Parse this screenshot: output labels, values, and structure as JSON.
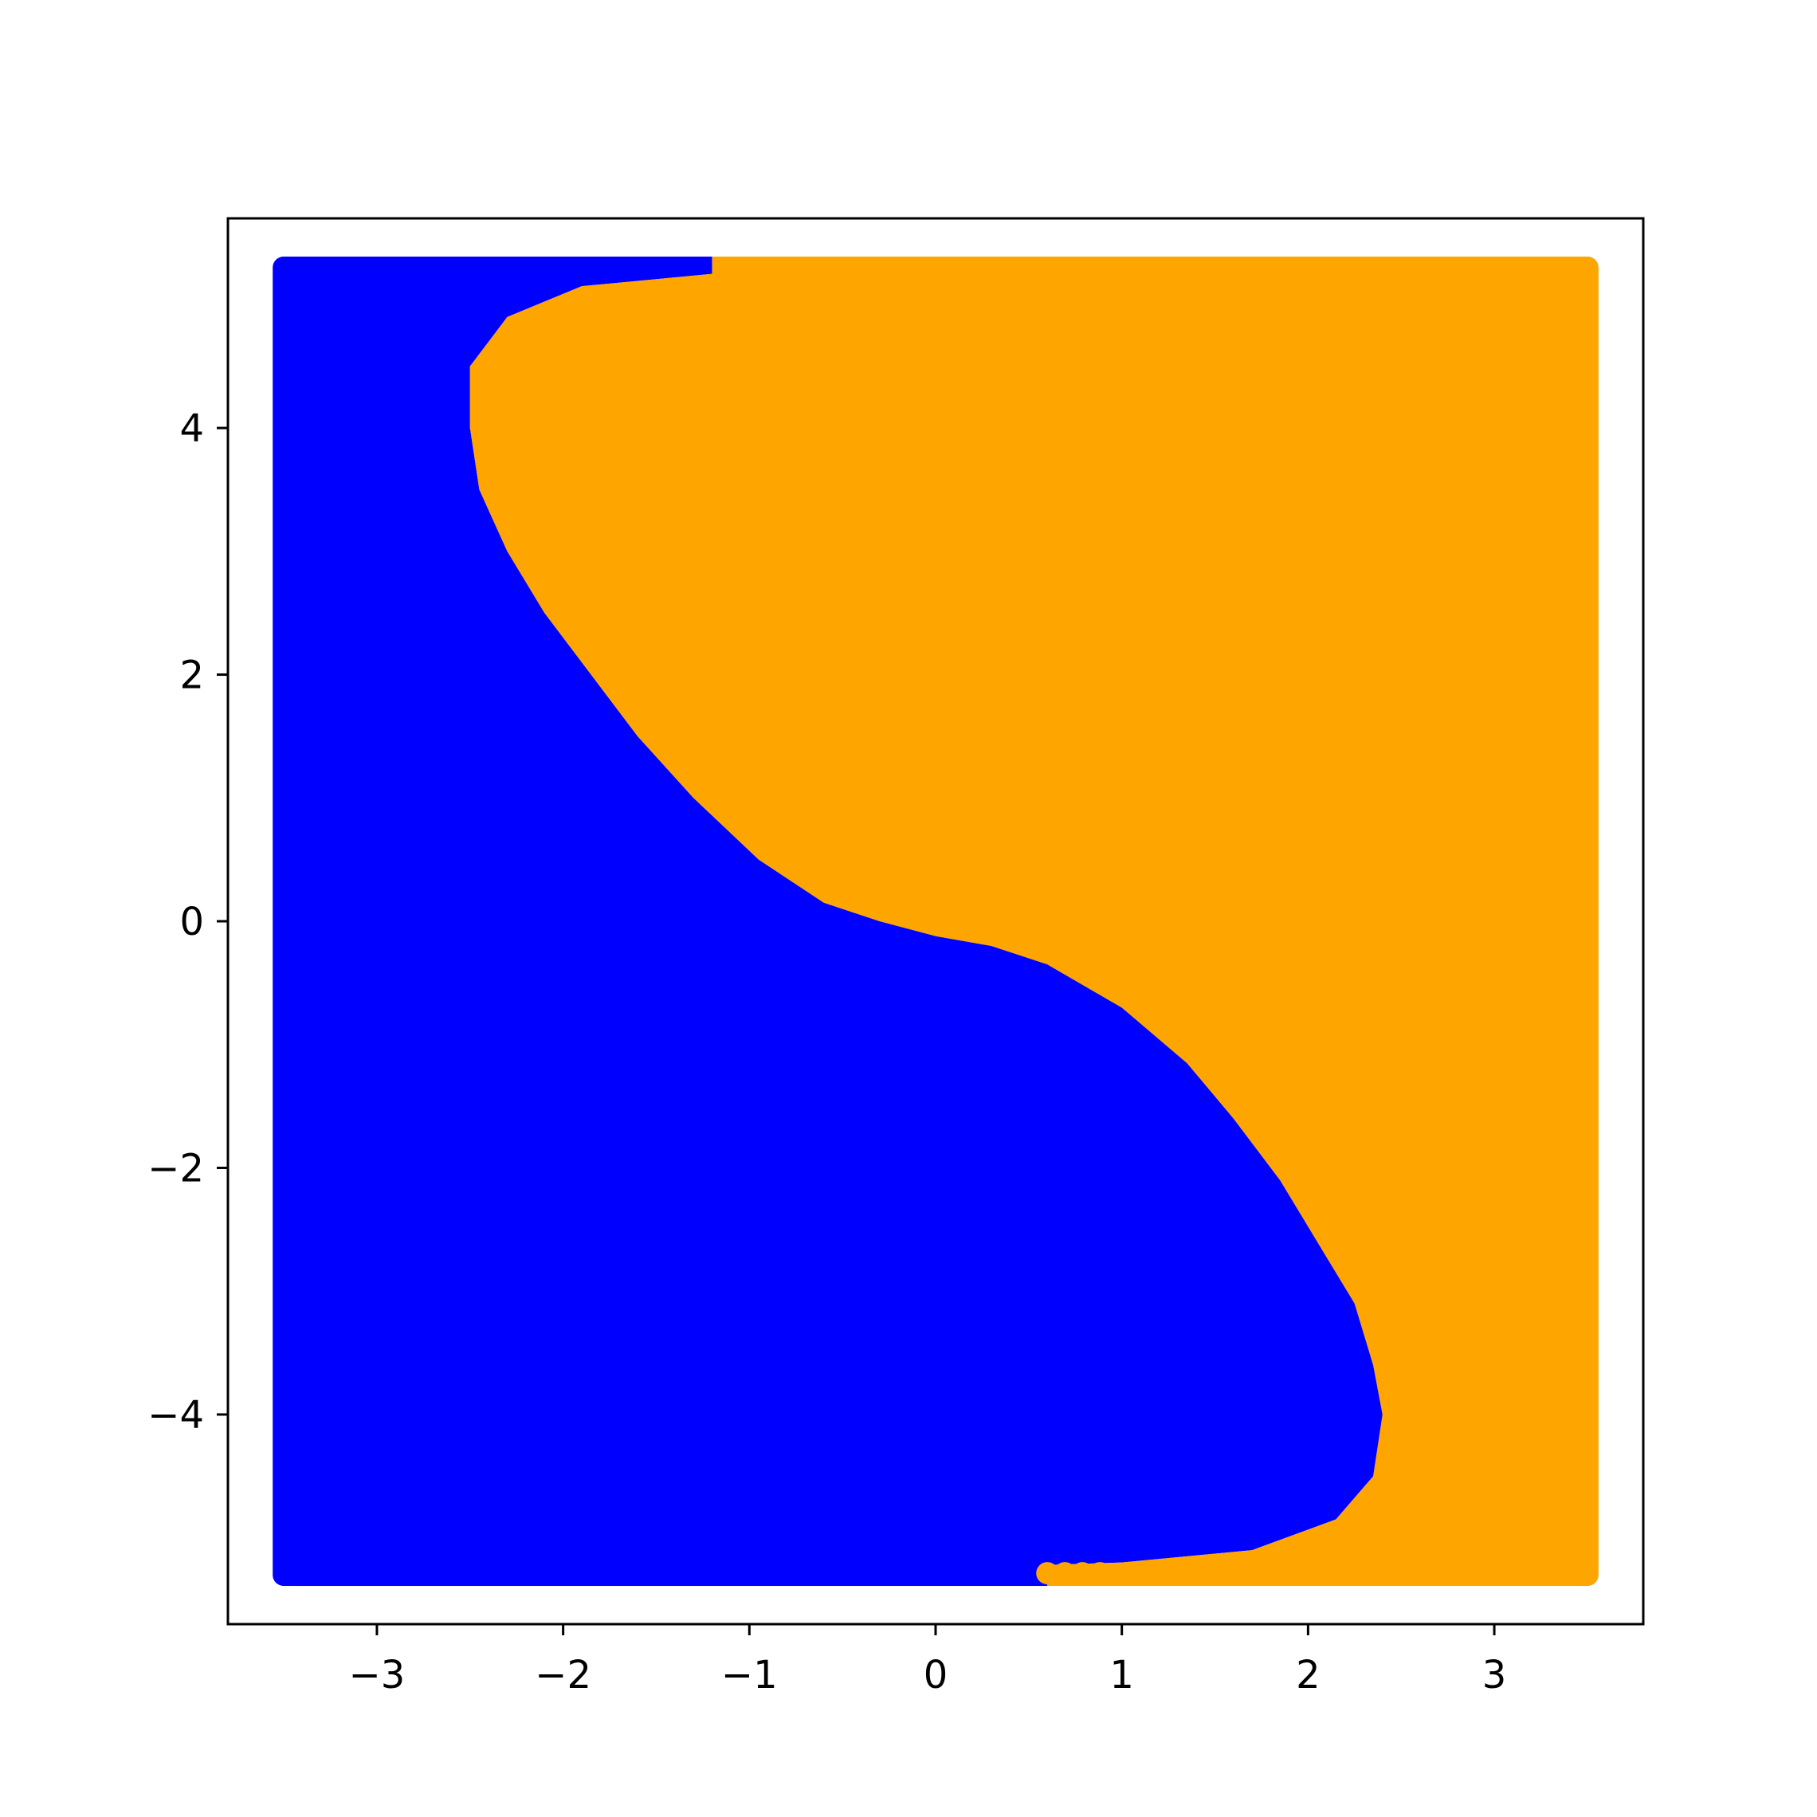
{
  "chart_data": {
    "type": "scatter",
    "title": "",
    "xlabel": "",
    "ylabel": "",
    "xlim": [
      -3.8,
      3.8
    ],
    "ylim": [
      -5.7,
      5.7
    ],
    "grid": false,
    "legend": "none",
    "xticks": [
      -3,
      -2,
      -1,
      0,
      1,
      2,
      3
    ],
    "yticks": [
      -4,
      -2,
      0,
      2,
      4
    ],
    "xtick_labels": [
      "−3",
      "−2",
      "−1",
      "0",
      "1",
      "2",
      "3"
    ],
    "ytick_labels": [
      "−4",
      "−2",
      "0",
      "2",
      "4"
    ],
    "point_grid": {
      "x_range": [
        -3.5,
        3.5
      ],
      "y_range": [
        -5.3,
        5.3
      ]
    },
    "series": [
      {
        "color": "#0000ff",
        "region": "left of boundary"
      },
      {
        "color": "#ffa500",
        "region": "right of boundary"
      }
    ],
    "boundary": [
      {
        "x": -1.2,
        "y": 5.25
      },
      {
        "x": -1.9,
        "y": 5.15
      },
      {
        "x": -2.3,
        "y": 4.9
      },
      {
        "x": -2.5,
        "y": 4.5
      },
      {
        "x": -2.5,
        "y": 4.0
      },
      {
        "x": -2.45,
        "y": 3.5
      },
      {
        "x": -2.3,
        "y": 3.0
      },
      {
        "x": -2.1,
        "y": 2.5
      },
      {
        "x": -1.85,
        "y": 2.0
      },
      {
        "x": -1.6,
        "y": 1.5
      },
      {
        "x": -1.3,
        "y": 1.0
      },
      {
        "x": -0.95,
        "y": 0.5
      },
      {
        "x": -0.6,
        "y": 0.15
      },
      {
        "x": -0.3,
        "y": 0.0
      },
      {
        "x": 0.0,
        "y": -0.12
      },
      {
        "x": 0.3,
        "y": -0.2
      },
      {
        "x": 0.6,
        "y": -0.35
      },
      {
        "x": 1.0,
        "y": -0.7
      },
      {
        "x": 1.35,
        "y": -1.15
      },
      {
        "x": 1.6,
        "y": -1.6
      },
      {
        "x": 1.85,
        "y": -2.1
      },
      {
        "x": 2.05,
        "y": -2.6
      },
      {
        "x": 2.25,
        "y": -3.1
      },
      {
        "x": 2.35,
        "y": -3.6
      },
      {
        "x": 2.4,
        "y": -4.0
      },
      {
        "x": 2.35,
        "y": -4.5
      },
      {
        "x": 2.15,
        "y": -4.85
      },
      {
        "x": 1.7,
        "y": -5.1
      },
      {
        "x": 1.0,
        "y": -5.2
      },
      {
        "x": 0.6,
        "y": -5.22
      }
    ]
  }
}
